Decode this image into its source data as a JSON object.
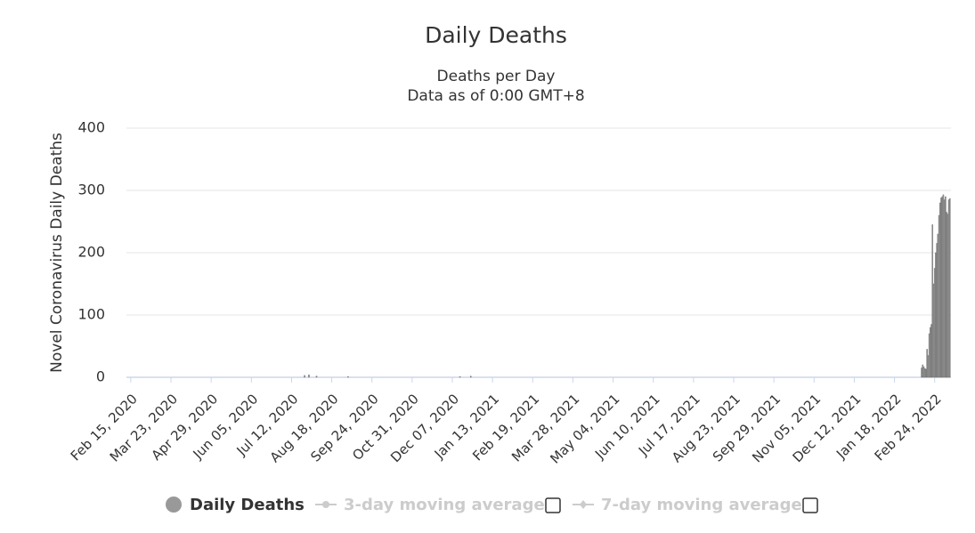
{
  "chart_data": {
    "type": "bar",
    "title": "Daily Deaths",
    "subtitle": [
      "Deaths per Day",
      "Data as of 0:00 GMT+8"
    ],
    "y_label": "Novel Coronavirus Daily Deaths",
    "x": [
      "2020-07-24",
      "2020-07-28",
      "2020-08-04",
      "2020-09-02",
      "2020-12-14",
      "2020-12-24",
      "2022-02-12",
      "2022-02-13",
      "2022-02-14",
      "2022-02-15",
      "2022-02-16",
      "2022-02-17",
      "2022-02-18",
      "2022-02-19",
      "2022-02-20",
      "2022-02-21",
      "2022-02-22",
      "2022-02-23",
      "2022-02-24",
      "2022-02-25",
      "2022-02-26",
      "2022-02-27",
      "2022-02-28",
      "2022-03-01",
      "2022-03-02",
      "2022-03-03",
      "2022-03-04",
      "2022-03-05",
      "2022-03-06",
      "2022-03-07",
      "2022-03-08",
      "2022-03-09",
      "2022-03-10"
    ],
    "series": [
      {
        "name": "Daily Deaths",
        "color": "#999999",
        "values": [
          3,
          4,
          2,
          1,
          1,
          2,
          15,
          20,
          17,
          14,
          13,
          45,
          35,
          70,
          80,
          85,
          245,
          150,
          175,
          200,
          215,
          230,
          260,
          280,
          288,
          290,
          293,
          285,
          290,
          265,
          262,
          285,
          287
        ]
      }
    ],
    "other_legend": [
      "3-day moving average",
      "7-day moving average"
    ],
    "xlim": [
      "2020-02-11",
      "2022-03-11"
    ],
    "xticks": [
      {
        "value": "2020-02-15",
        "label": "Feb 15, 2020"
      },
      {
        "value": "2020-03-23",
        "label": "Mar 23, 2020"
      },
      {
        "value": "2020-04-29",
        "label": "Apr 29, 2020"
      },
      {
        "value": "2020-06-05",
        "label": "Jun 05, 2020"
      },
      {
        "value": "2020-07-12",
        "label": "Jul 12, 2020"
      },
      {
        "value": "2020-08-18",
        "label": "Aug 18, 2020"
      },
      {
        "value": "2020-09-24",
        "label": "Sep 24, 2020"
      },
      {
        "value": "2020-10-31",
        "label": "Oct 31, 2020"
      },
      {
        "value": "2020-12-07",
        "label": "Dec 07, 2020"
      },
      {
        "value": "2021-01-13",
        "label": "Jan 13, 2021"
      },
      {
        "value": "2021-02-19",
        "label": "Feb 19, 2021"
      },
      {
        "value": "2021-03-28",
        "label": "Mar 28, 2021"
      },
      {
        "value": "2021-05-04",
        "label": "May 04, 2021"
      },
      {
        "value": "2021-06-10",
        "label": "Jun 10, 2021"
      },
      {
        "value": "2021-07-17",
        "label": "Jul 17, 2021"
      },
      {
        "value": "2021-08-23",
        "label": "Aug 23, 2021"
      },
      {
        "value": "2021-09-29",
        "label": "Sep 29, 2021"
      },
      {
        "value": "2021-11-05",
        "label": "Nov 05, 2021"
      },
      {
        "value": "2021-12-12",
        "label": "Dec 12, 2021"
      },
      {
        "value": "2022-01-18",
        "label": "Jan 18, 2022"
      },
      {
        "value": "2022-02-24",
        "label": "Feb 24, 2022"
      }
    ],
    "ylim": [
      0,
      400
    ],
    "yticks": [
      0,
      100,
      200,
      300,
      400
    ],
    "grid": true
  }
}
